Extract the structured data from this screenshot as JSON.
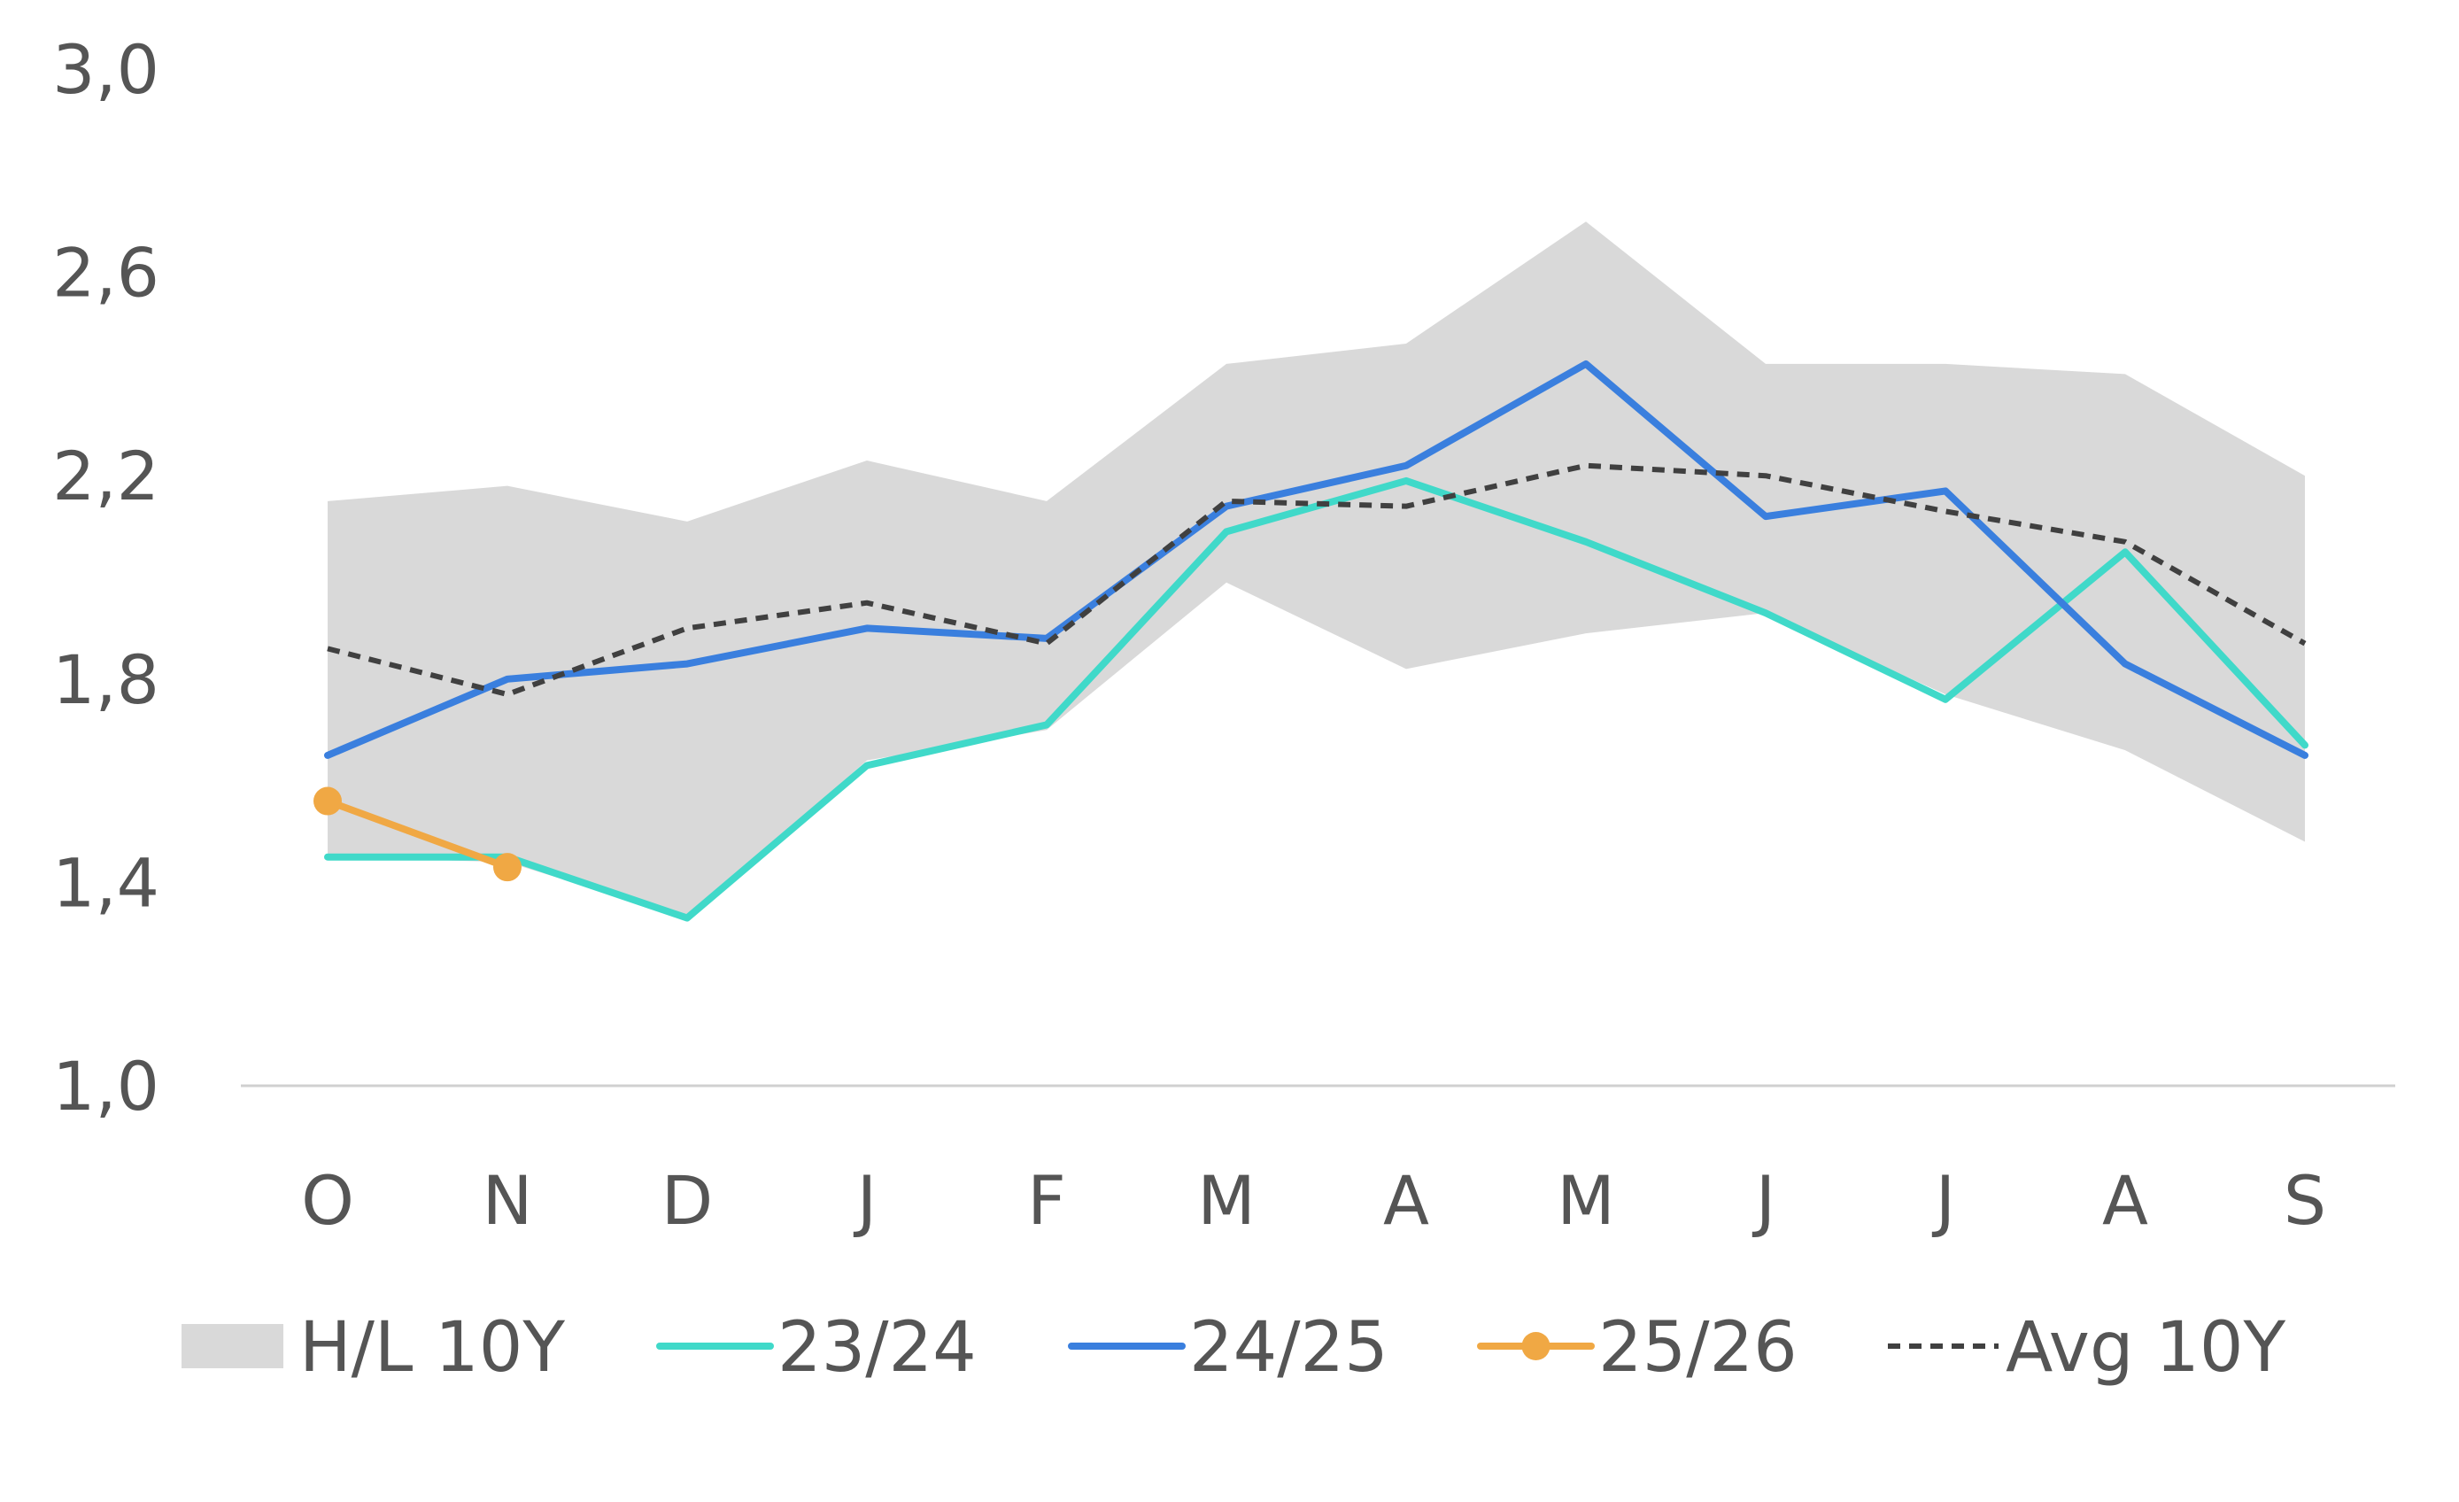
{
  "chart_data": {
    "type": "line",
    "title": "",
    "xlabel": "",
    "ylabel": "",
    "categories": [
      "O",
      "N",
      "D",
      "J",
      "F",
      "M",
      "A",
      "M",
      "J",
      "J",
      "A",
      "S"
    ],
    "ylim": [
      1.0,
      3.0
    ],
    "yticks": [
      1.0,
      1.4,
      1.8,
      2.2,
      2.6,
      3.0
    ],
    "ytick_labels": [
      "1,0",
      "1,4",
      "1,8",
      "2,2",
      "2,6",
      "3,0"
    ],
    "grid": false,
    "legend_position": "bottom",
    "band": {
      "name": "H/L 10Y",
      "color": "#d9d9d9",
      "high": [
        2.15,
        2.18,
        2.11,
        2.23,
        2.15,
        2.42,
        2.46,
        2.7,
        2.42,
        2.42,
        2.4,
        2.2
      ],
      "low": [
        1.45,
        1.44,
        1.33,
        1.64,
        1.7,
        1.99,
        1.82,
        1.89,
        1.93,
        1.77,
        1.66,
        1.48
      ]
    },
    "series": [
      {
        "name": "23/24",
        "color": "#40d9c9",
        "style": "solid",
        "values": [
          1.45,
          1.45,
          1.33,
          1.63,
          1.71,
          2.09,
          2.19,
          2.07,
          1.93,
          1.76,
          2.05,
          1.67
        ]
      },
      {
        "name": "24/25",
        "color": "#3a7fde",
        "style": "solid",
        "values": [
          1.65,
          1.8,
          1.83,
          1.9,
          1.88,
          2.14,
          2.22,
          2.42,
          2.12,
          2.17,
          1.83,
          1.65
        ]
      },
      {
        "name": "25/26",
        "color": "#f0a844",
        "style": "markers",
        "values": [
          1.56,
          1.43,
          null,
          null,
          null,
          null,
          null,
          null,
          null,
          null,
          null,
          null
        ]
      },
      {
        "name": "Avg 10Y",
        "color": "#404040",
        "style": "dashed",
        "values": [
          1.86,
          1.77,
          1.9,
          1.95,
          1.87,
          2.15,
          2.14,
          2.22,
          2.2,
          2.13,
          2.07,
          1.87
        ]
      }
    ]
  }
}
